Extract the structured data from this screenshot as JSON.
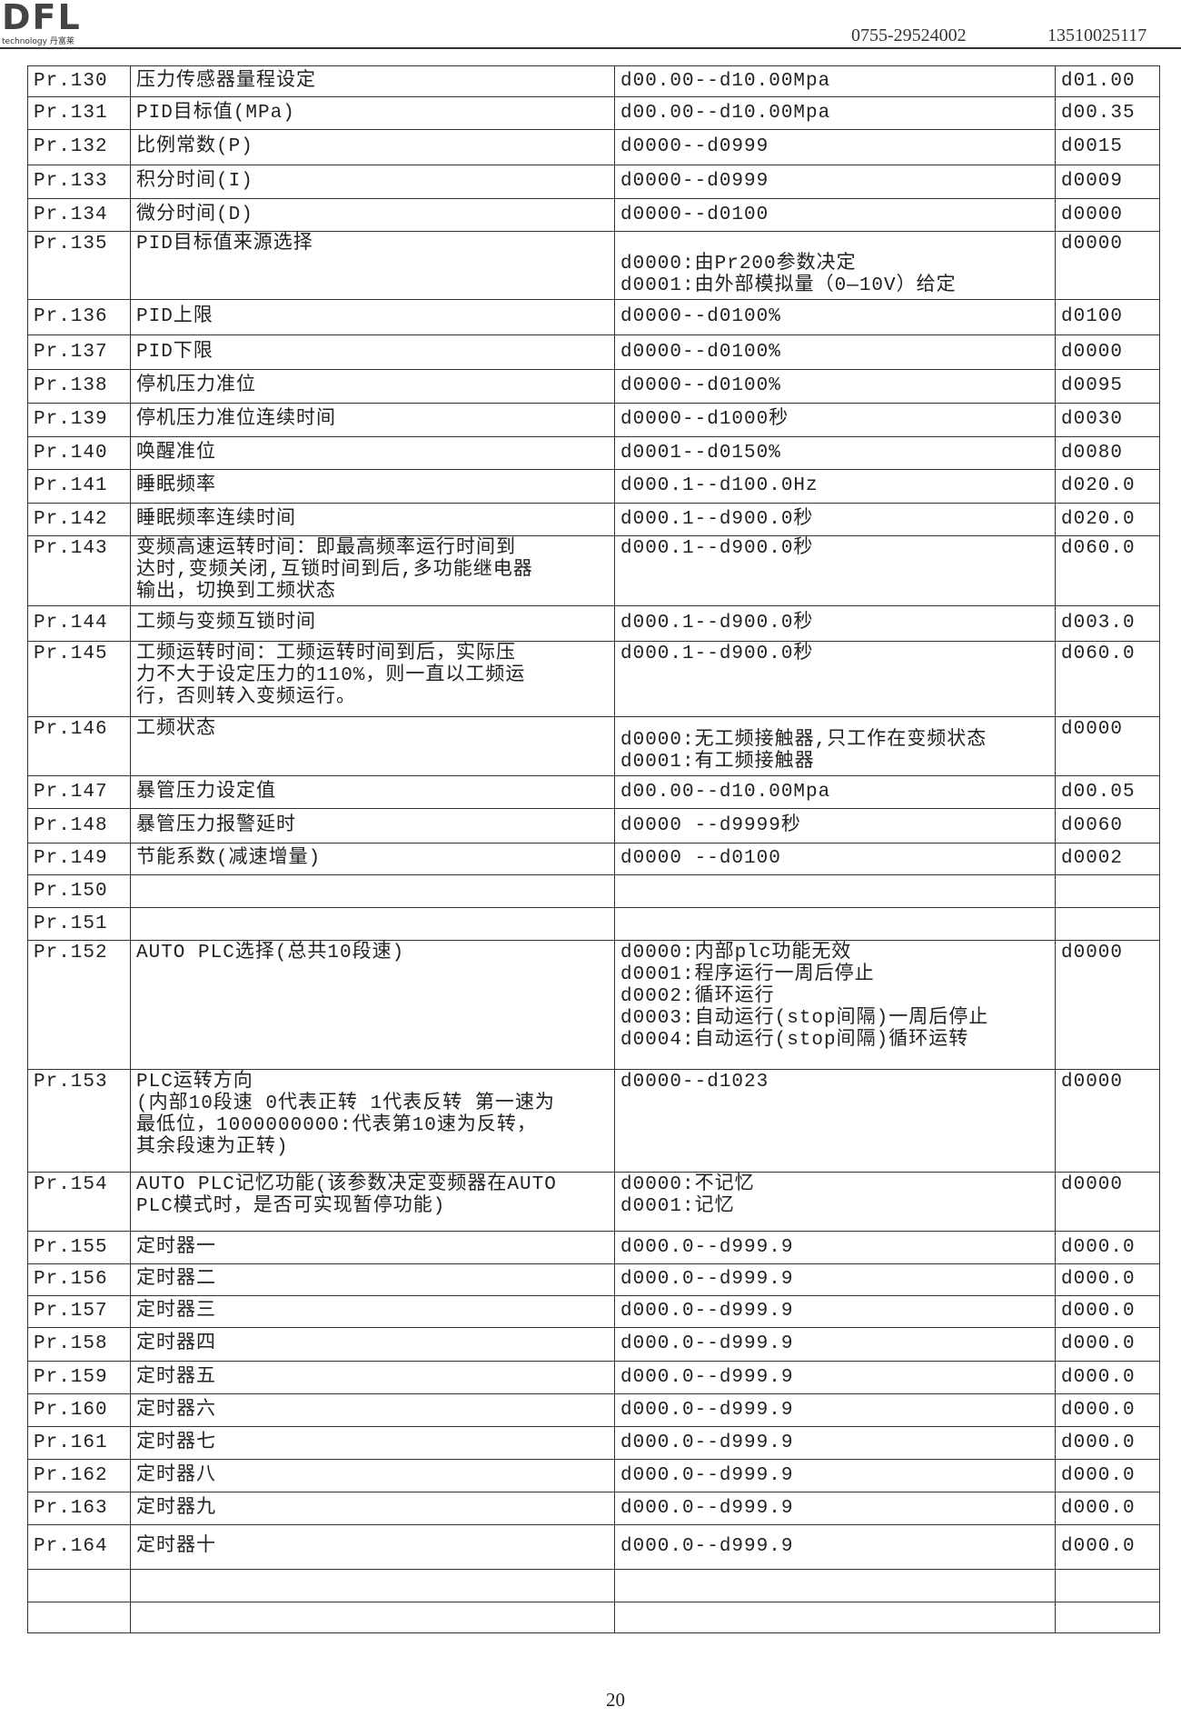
{
  "header": {
    "logo_text": "DFL",
    "logo_sub": "technology 丹富莱",
    "phone1": "0755-29524002",
    "phone2": "13510025117"
  },
  "rows": [
    {
      "code": "Pr.130",
      "name": [
        "压力传感器量程设定"
      ],
      "range": [
        "d00.00--d10.00Mpa"
      ],
      "default": "d01.00"
    },
    {
      "code": "Pr.131",
      "name": [
        "PID目标值(MPa)"
      ],
      "range": [
        "d00.00--d10.00Mpa"
      ],
      "default": "d00.35"
    },
    {
      "code": "Pr.132",
      "name": [
        "比例常数(P)"
      ],
      "range": [
        "d0000--d0999"
      ],
      "default": "d0015"
    },
    {
      "code": "Pr.133",
      "name": [
        "积分时间(I)"
      ],
      "range": [
        "d0000--d0999"
      ],
      "default": "d0009"
    },
    {
      "code": "Pr.134",
      "name": [
        "微分时间(D)"
      ],
      "range": [
        "d0000--d0100"
      ],
      "default": "d0000"
    },
    {
      "code": "Pr.135",
      "name": [
        "PID目标值来源选择"
      ],
      "range": [
        "d0000:由Pr200参数决定",
        "d0001:由外部模拟量（0—10V）给定"
      ],
      "default": "d0000"
    },
    {
      "code": "Pr.136",
      "name": [
        "PID上限"
      ],
      "range": [
        "d0000--d0100%"
      ],
      "default": "d0100"
    },
    {
      "code": "Pr.137",
      "name": [
        "PID下限"
      ],
      "range": [
        "d0000--d0100%"
      ],
      "default": "d0000"
    },
    {
      "code": "Pr.138",
      "name": [
        "停机压力准位"
      ],
      "range": [
        "d0000--d0100%"
      ],
      "default": "d0095"
    },
    {
      "code": "Pr.139",
      "name": [
        "停机压力准位连续时间"
      ],
      "range": [
        "d0000--d1000秒"
      ],
      "default": "d0030"
    },
    {
      "code": "Pr.140",
      "name": [
        "唤醒准位"
      ],
      "range": [
        "d0001--d0150%"
      ],
      "default": "d0080"
    },
    {
      "code": "Pr.141",
      "name": [
        "睡眠频率"
      ],
      "range": [
        "d000.1--d100.0Hz"
      ],
      "default": "d020.0"
    },
    {
      "code": "Pr.142",
      "name": [
        "睡眠频率连续时间"
      ],
      "range": [
        "d000.1--d900.0秒"
      ],
      "default": "d020.0"
    },
    {
      "code": "Pr.143",
      "name": [
        "变频高速运转时间：即最高频率运行时间到",
        "达时,变频关闭,互锁时间到后,多功能继电器",
        "输出，切换到工频状态"
      ],
      "range": [
        "d000.1--d900.0秒"
      ],
      "default": "d060.0"
    },
    {
      "code": "Pr.144",
      "name": [
        "工频与变频互锁时间"
      ],
      "range": [
        "d000.1--d900.0秒"
      ],
      "default": "d003.0"
    },
    {
      "code": "Pr.145",
      "name": [
        "工频运转时间：工频运转时间到后，实际压",
        "力不大于设定压力的110%，则一直以工频运",
        "行，否则转入变频运行。"
      ],
      "range": [
        "d000.1--d900.0秒"
      ],
      "default": "d060.0"
    },
    {
      "code": "Pr.146",
      "name": [
        "工频状态"
      ],
      "range": [
        "d0000:无工频接触器,只工作在变频状态",
        "d0001:有工频接触器"
      ],
      "default": "d0000"
    },
    {
      "code": "Pr.147",
      "name": [
        "暴管压力设定值"
      ],
      "range": [
        "d00.00--d10.00Mpa"
      ],
      "default": "d00.05"
    },
    {
      "code": "Pr.148",
      "name": [
        "暴管压力报警延时"
      ],
      "range": [
        "d0000 --d9999秒"
      ],
      "default": "d0060"
    },
    {
      "code": "Pr.149",
      "name": [
        "节能系数(减速增量)"
      ],
      "range": [
        "d0000 --d0100"
      ],
      "default": "d0002"
    },
    {
      "code": "Pr.150",
      "name": [],
      "range": [],
      "default": ""
    },
    {
      "code": "Pr.151",
      "name": [],
      "range": [],
      "default": ""
    },
    {
      "code": "Pr.152",
      "name": [
        "AUTO PLC选择(总共10段速)"
      ],
      "range": [
        "d0000:内部plc功能无效",
        "d0001:程序运行一周后停止",
        "d0002:循环运行",
        "d0003:自动运行(stop间隔)一周后停止",
        "d0004:自动运行(stop间隔)循环运转"
      ],
      "default": "d0000"
    },
    {
      "code": "Pr.153",
      "name": [
        "PLC运转方向",
        "(内部10段速 0代表正转 1代表反转 第一速为",
        "最低位，1000000000:代表第10速为反转，",
        "其余段速为正转)"
      ],
      "range": [
        "d0000--d1023"
      ],
      "default": "d0000"
    },
    {
      "code": "Pr.154",
      "name": [
        "AUTO PLC记忆功能(该参数决定变频器在AUTO",
        "PLC模式时，是否可实现暂停功能)"
      ],
      "range": [
        "d0000:不记忆",
        "d0001:记忆"
      ],
      "default": "d0000"
    },
    {
      "code": "Pr.155",
      "name": [
        "定时器一"
      ],
      "range": [
        "d000.0--d999.9"
      ],
      "default": "d000.0"
    },
    {
      "code": "Pr.156",
      "name": [
        "定时器二"
      ],
      "range": [
        "d000.0--d999.9"
      ],
      "default": "d000.0"
    },
    {
      "code": "Pr.157",
      "name": [
        "定时器三"
      ],
      "range": [
        "d000.0--d999.9"
      ],
      "default": "d000.0"
    },
    {
      "code": "Pr.158",
      "name": [
        "定时器四"
      ],
      "range": [
        "d000.0--d999.9"
      ],
      "default": "d000.0"
    },
    {
      "code": "Pr.159",
      "name": [
        "定时器五"
      ],
      "range": [
        "d000.0--d999.9"
      ],
      "default": "d000.0"
    },
    {
      "code": "Pr.160",
      "name": [
        "定时器六"
      ],
      "range": [
        "d000.0--d999.9"
      ],
      "default": "d000.0"
    },
    {
      "code": "Pr.161",
      "name": [
        "定时器七"
      ],
      "range": [
        "d000.0--d999.9"
      ],
      "default": "d000.0"
    },
    {
      "code": "Pr.162",
      "name": [
        "定时器八"
      ],
      "range": [
        "d000.0--d999.9"
      ],
      "default": "d000.0"
    },
    {
      "code": "Pr.163",
      "name": [
        "定时器九"
      ],
      "range": [
        "d000.0--d999.9"
      ],
      "default": "d000.0"
    },
    {
      "code": "Pr.164",
      "name": [
        "定时器十"
      ],
      "range": [
        "d000.0--d999.9"
      ],
      "default": "d000.0"
    },
    {
      "code": "",
      "name": [],
      "range": [],
      "default": ""
    },
    {
      "code": "",
      "name": [],
      "range": [],
      "default": ""
    }
  ],
  "footer": {
    "page_number": "20"
  }
}
